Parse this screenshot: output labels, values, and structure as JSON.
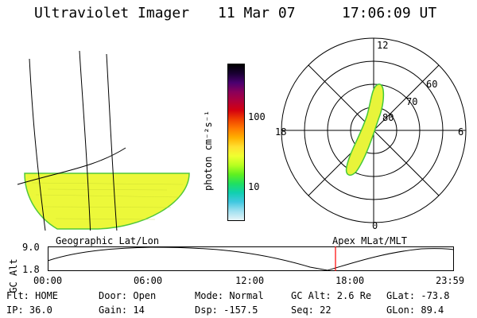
{
  "header": {
    "instrument": "Ultraviolet Imager",
    "date": "11 Mar 07",
    "time": "17:06:09 UT"
  },
  "colorbar": {
    "label": "photon cm⁻²s⁻¹",
    "ticks": [
      "100",
      "10"
    ],
    "colors": [
      "#000000",
      "#1a0033",
      "#4a0070",
      "#8a005a",
      "#b0003a",
      "#d40010",
      "#f04000",
      "#ff7a00",
      "#ffb000",
      "#ffe030",
      "#f0ff30",
      "#b8ff20",
      "#60f020",
      "#20e060",
      "#10d0b0",
      "#40c8e0",
      "#a0e0f0",
      "#e6f4f8"
    ]
  },
  "polar": {
    "labels_hours": [
      "12",
      "18",
      "6",
      "0"
    ],
    "labels_lat": [
      "60",
      "70",
      "80"
    ]
  },
  "plot": {
    "left_title": "Geographic Lat/Lon",
    "right_title": "Apex MLat/MLT",
    "ylabel": "GC Alt",
    "y_ticks": [
      "9.0",
      "1.8"
    ],
    "x_ticks": [
      "00:00",
      "06:00",
      "12:00",
      "18:00",
      "23:59"
    ],
    "marker_color": "#ff0000"
  },
  "footer": {
    "row1": {
      "filter": "Flt: HOME",
      "door": "Door: Open",
      "mode": "Mode: Normal",
      "gc_alt": "GC Alt: 2.6 Re",
      "glat": "GLat: -73.8"
    },
    "row2": {
      "ip": "IP: 36.0",
      "gain": "Gain: 14",
      "dsp": "Dsp: -157.5",
      "seq": "Seq: 22",
      "glon": "GLon:  89.4"
    }
  }
}
